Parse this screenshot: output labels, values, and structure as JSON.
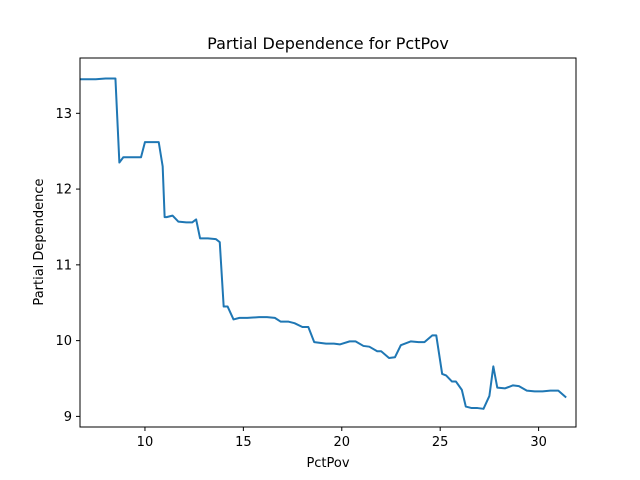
{
  "chart_data": {
    "type": "line",
    "title": "Partial Dependence for PctPov",
    "xlabel": "PctPov",
    "ylabel": "Partial Dependence",
    "xlim": [
      6.7,
      31.9
    ],
    "ylim": [
      8.86,
      13.73
    ],
    "xticks": [
      10,
      15,
      20,
      25,
      30
    ],
    "yticks": [
      9,
      10,
      11,
      12,
      13
    ],
    "xtick_labels": [
      "10",
      "15",
      "20",
      "25",
      "30"
    ],
    "ytick_labels": [
      "9",
      "10",
      "11",
      "12",
      "13"
    ],
    "grid": false,
    "legend": "none",
    "series": [
      {
        "color": "#1f77b4",
        "x": [
          6.7,
          7.5,
          8.0,
          8.5,
          8.7,
          8.9,
          9.2,
          9.8,
          10.0,
          10.7,
          10.9,
          11.0,
          11.1,
          11.4,
          11.7,
          12.1,
          12.4,
          12.6,
          12.8,
          13.2,
          13.6,
          13.8,
          14.0,
          14.2,
          14.5,
          14.8,
          15.2,
          15.8,
          16.2,
          16.6,
          16.9,
          17.3,
          17.6,
          18.0,
          18.3,
          18.6,
          19.2,
          19.6,
          19.9,
          20.4,
          20.7,
          21.1,
          21.4,
          21.8,
          22.0,
          22.4,
          22.7,
          23.0,
          23.5,
          23.9,
          24.2,
          24.6,
          24.8,
          25.1,
          25.3,
          25.6,
          25.8,
          26.1,
          26.3,
          26.6,
          26.9,
          27.2,
          27.5,
          27.7,
          27.9,
          28.3,
          28.7,
          29.0,
          29.4,
          29.8,
          30.2,
          30.6,
          31.0,
          31.4
        ],
        "y": [
          13.45,
          13.45,
          13.46,
          13.46,
          12.35,
          12.42,
          12.42,
          12.42,
          12.62,
          12.62,
          12.3,
          11.63,
          11.63,
          11.65,
          11.57,
          11.56,
          11.56,
          11.6,
          11.35,
          11.35,
          11.34,
          11.3,
          10.45,
          10.45,
          10.28,
          10.3,
          10.3,
          10.31,
          10.31,
          10.3,
          10.25,
          10.25,
          10.23,
          10.18,
          10.18,
          9.98,
          9.96,
          9.96,
          9.95,
          9.99,
          9.99,
          9.93,
          9.92,
          9.86,
          9.86,
          9.77,
          9.78,
          9.94,
          9.99,
          9.98,
          9.98,
          10.07,
          10.07,
          9.56,
          9.54,
          9.46,
          9.46,
          9.35,
          9.13,
          9.11,
          9.11,
          9.1,
          9.27,
          9.66,
          9.38,
          9.37,
          9.41,
          9.4,
          9.34,
          9.33,
          9.33,
          9.34,
          9.34,
          9.25
        ]
      }
    ]
  }
}
